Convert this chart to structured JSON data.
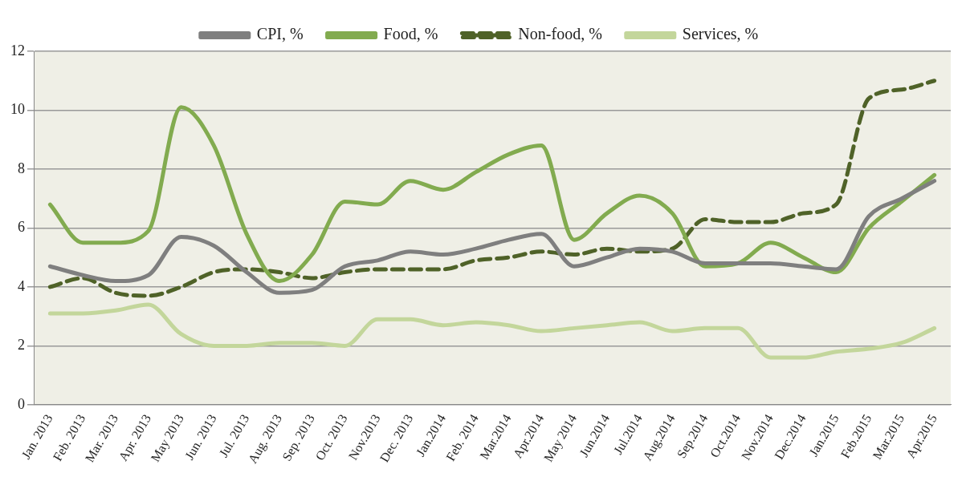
{
  "chart_data": {
    "type": "line",
    "categories": [
      "Jan. 2013",
      "Feb. 2013",
      "Mar. 2013",
      "Apr. 2013",
      "May 2013",
      "Jun. 2013",
      "Jul. 2013",
      "Aug. 2013",
      "Sep. 2013",
      "Oct. 2013",
      "Nov.2013",
      "Dec. 2013",
      "Jan.2014",
      "Feb. 2014",
      "Mar.2014",
      "Apr.2014",
      "May 2014",
      "Jun.2014",
      "Jul.2014",
      "Aug.2014",
      "Sep.2014",
      "Oct.2014",
      "Nov.2014",
      "Dec.2014",
      "Jan.2015",
      "Feb.2015",
      "Mar.2015",
      "Apr.2015"
    ],
    "series": [
      {
        "name": "CPI, %",
        "color": "#7f7f7f",
        "values": [
          4.7,
          4.4,
          4.2,
          4.4,
          5.7,
          5.4,
          4.5,
          3.8,
          3.9,
          4.7,
          4.9,
          5.2,
          5.1,
          5.3,
          5.6,
          5.8,
          4.7,
          5.0,
          5.3,
          5.2,
          4.8,
          4.8,
          4.8,
          4.7,
          4.6,
          6.4,
          7.0,
          7.6
        ]
      },
      {
        "name": "Food, %",
        "color": "#82ab4f",
        "values": [
          6.8,
          5.5,
          5.5,
          5.9,
          10.1,
          8.8,
          5.8,
          4.2,
          5.1,
          6.9,
          6.8,
          7.6,
          7.3,
          7.9,
          8.5,
          8.8,
          5.6,
          6.5,
          7.1,
          6.5,
          4.7,
          4.8,
          5.5,
          5.0,
          4.5,
          6.0,
          6.9,
          7.8
        ]
      },
      {
        "name": "Non-food, %",
        "color": "#4f6228",
        "line_style": "dashed",
        "values": [
          4.0,
          4.3,
          3.8,
          3.7,
          4.0,
          4.5,
          4.6,
          4.5,
          4.3,
          4.5,
          4.6,
          4.6,
          4.6,
          4.9,
          5.0,
          5.2,
          5.1,
          5.3,
          5.2,
          5.3,
          6.3,
          6.2,
          6.2,
          6.5,
          6.8,
          10.4,
          10.7,
          11.0
        ]
      },
      {
        "name": "Services, %",
        "color": "#c3d69b",
        "values": [
          3.1,
          3.1,
          3.2,
          3.4,
          2.4,
          2.0,
          2.0,
          2.1,
          2.1,
          2.0,
          2.9,
          2.9,
          2.7,
          2.8,
          2.7,
          2.5,
          2.6,
          2.7,
          2.8,
          2.5,
          2.6,
          2.6,
          1.6,
          1.6,
          1.8,
          1.9,
          2.1,
          2.6
        ]
      }
    ],
    "ylim": [
      0,
      12
    ],
    "yticks": [
      0,
      2,
      4,
      6,
      8,
      10,
      12
    ],
    "grid": "y",
    "legend": "top",
    "marker": "none",
    "line_style": "solid"
  }
}
